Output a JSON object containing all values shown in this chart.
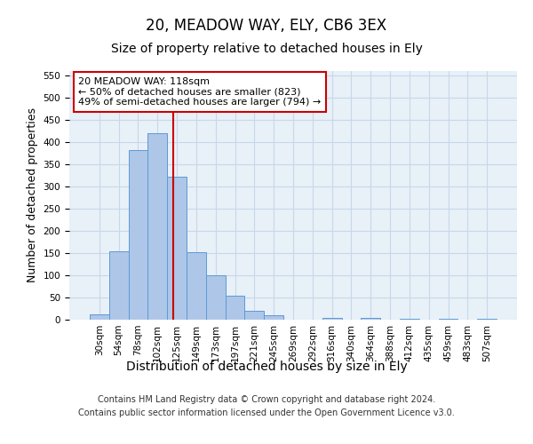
{
  "title": "20, MEADOW WAY, ELY, CB6 3EX",
  "subtitle": "Size of property relative to detached houses in Ely",
  "xlabel": "Distribution of detached houses by size in Ely",
  "ylabel": "Number of detached properties",
  "bar_labels": [
    "30sqm",
    "54sqm",
    "78sqm",
    "102sqm",
    "125sqm",
    "149sqm",
    "173sqm",
    "197sqm",
    "221sqm",
    "245sqm",
    "269sqm",
    "292sqm",
    "316sqm",
    "340sqm",
    "364sqm",
    "388sqm",
    "412sqm",
    "435sqm",
    "459sqm",
    "483sqm",
    "507sqm"
  ],
  "bar_values": [
    13,
    155,
    383,
    420,
    322,
    152,
    100,
    55,
    20,
    10,
    0,
    0,
    5,
    0,
    5,
    0,
    3,
    0,
    3,
    0,
    3
  ],
  "bar_color": "#aec6e8",
  "bar_edge_color": "#5b9bd5",
  "bar_width": 1.0,
  "ylim": [
    0,
    560
  ],
  "yticks": [
    0,
    50,
    100,
    150,
    200,
    250,
    300,
    350,
    400,
    450,
    500,
    550
  ],
  "grid_color": "#c8d8e8",
  "background_color": "#e8f0f8",
  "vline_x": 3.83,
  "vline_color": "#cc0000",
  "annotation_text": "20 MEADOW WAY: 118sqm\n← 50% of detached houses are smaller (823)\n49% of semi-detached houses are larger (794) →",
  "annotation_box_color": "#ffffff",
  "annotation_border_color": "#cc0000",
  "footer_text": "Contains HM Land Registry data © Crown copyright and database right 2024.\nContains public sector information licensed under the Open Government Licence v3.0.",
  "title_fontsize": 12,
  "subtitle_fontsize": 10,
  "xlabel_fontsize": 10,
  "ylabel_fontsize": 9,
  "tick_fontsize": 7.5,
  "annotation_fontsize": 8,
  "footer_fontsize": 7
}
